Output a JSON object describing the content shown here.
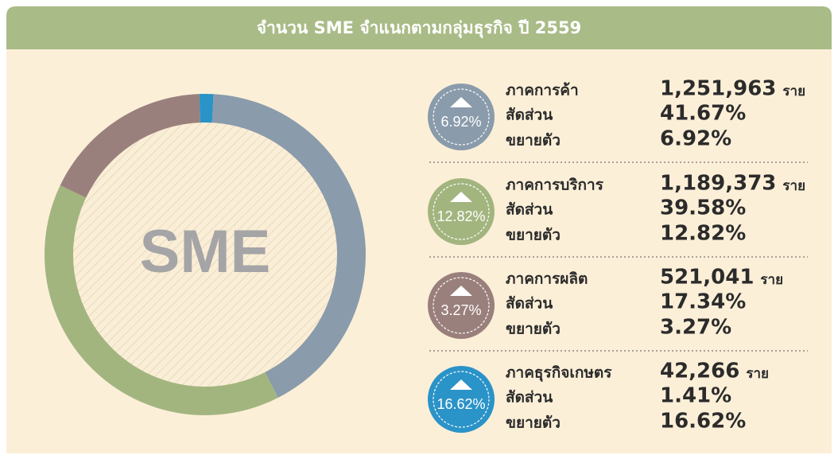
{
  "chart_data": {
    "type": "donut",
    "title": "จำนวน SME จำแนกตามกลุ่มธุรกิจ ปี 2559",
    "center_label": "SME",
    "categories": [
      "ภาคการค้า",
      "ภาคการบริการ",
      "ภาคการผลิต",
      "ภาคธุรกิจเกษตร"
    ],
    "values": [
      41.67,
      39.58,
      17.34,
      1.41
    ],
    "value_labels": [
      "41.67%",
      "39.58%",
      "17.34%",
      "1.41%"
    ],
    "colors": [
      "#8a9bab",
      "#a3b57f",
      "#9a807c",
      "#2a93c8"
    ],
    "counts": [
      1251963,
      1189373,
      521041,
      42266
    ],
    "count_labels": [
      "1,251,963",
      "1,189,373",
      "521,041",
      "42,266"
    ],
    "count_unit": "ราย",
    "share_label": "สัดส่วน",
    "growth_label": "ขยายตัว",
    "growth": [
      6.92,
      12.82,
      3.27,
      16.62
    ],
    "growth_labels": [
      "6.92%",
      "12.82%",
      "3.27%",
      "16.62%"
    ]
  }
}
